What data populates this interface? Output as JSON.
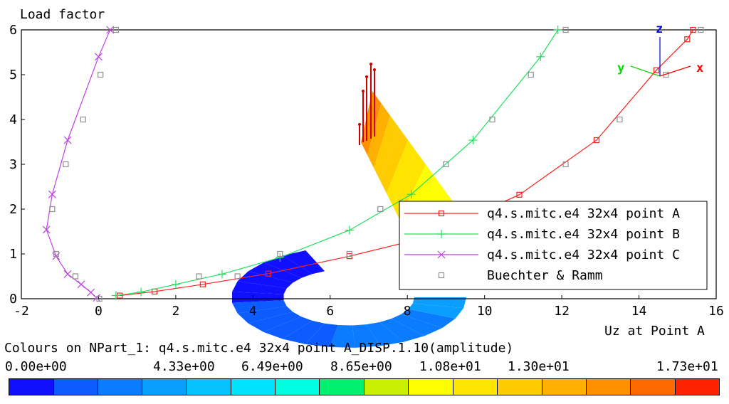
{
  "chart_data": {
    "type": "line",
    "ylabel": "Load factor",
    "xlabel": "Uz at Point A",
    "xlim": [
      -2,
      16
    ],
    "ylim": [
      0,
      6
    ],
    "x_ticks": [
      "-2",
      "0",
      "2",
      "4",
      "6",
      "8",
      "10",
      "12",
      "14",
      "16"
    ],
    "y_ticks": [
      "0",
      "1",
      "2",
      "3",
      "4",
      "5",
      "6"
    ],
    "series": [
      {
        "name": "q4.s.mitc.e4 32x4 point A",
        "color": "#ff2020",
        "marker": "square",
        "points": [
          [
            0.55,
            0.07
          ],
          [
            1.45,
            0.16
          ],
          [
            2.7,
            0.32
          ],
          [
            4.4,
            0.56
          ],
          [
            6.5,
            0.95
          ],
          [
            8.4,
            1.35
          ],
          [
            10.9,
            2.32
          ],
          [
            12.9,
            3.54
          ],
          [
            14.45,
            5.1
          ],
          [
            15.25,
            5.79
          ],
          [
            15.4,
            6.0
          ]
        ]
      },
      {
        "name": "q4.s.mitc.e4 32x4 point B",
        "color": "#20e060",
        "marker": "plus",
        "points": [
          [
            0.45,
            0.07
          ],
          [
            1.1,
            0.15
          ],
          [
            2.0,
            0.32
          ],
          [
            3.2,
            0.55
          ],
          [
            4.7,
            0.92
          ],
          [
            6.5,
            1.53
          ],
          [
            8.1,
            2.33
          ],
          [
            9.7,
            3.54
          ],
          [
            11.45,
            5.4
          ],
          [
            11.9,
            6.0
          ]
        ]
      },
      {
        "name": "q4.s.mitc.e4 32x4 point C",
        "color": "#c040e0",
        "marker": "x",
        "points": [
          [
            -0.05,
            0.02
          ],
          [
            -0.2,
            0.14
          ],
          [
            -0.45,
            0.32
          ],
          [
            -0.8,
            0.55
          ],
          [
            -1.1,
            0.95
          ],
          [
            -1.35,
            1.54
          ],
          [
            -1.2,
            2.33
          ],
          [
            -0.8,
            3.54
          ],
          [
            0.0,
            5.4
          ],
          [
            0.3,
            6.0
          ]
        ]
      },
      {
        "name": "Buechter & Ramm",
        "color": "#909090",
        "marker": "open-square",
        "points": [
          [
            0.02,
            0.0
          ],
          [
            -0.6,
            0.5
          ],
          [
            -1.1,
            1.0
          ],
          [
            -1.2,
            2.0
          ],
          [
            -0.85,
            3.0
          ],
          [
            -0.4,
            4.0
          ],
          [
            0.05,
            5.0
          ],
          [
            0.45,
            6.0
          ],
          [
            2.6,
            0.5
          ],
          [
            3.6,
            0.5
          ],
          [
            4.7,
            1.0
          ],
          [
            6.5,
            1.0
          ],
          [
            7.3,
            2.0
          ],
          [
            9.0,
            3.0
          ],
          [
            10.2,
            4.0
          ],
          [
            11.2,
            5.0
          ],
          [
            12.1,
            6.0
          ],
          [
            12.1,
            3.0
          ],
          [
            13.5,
            4.0
          ],
          [
            14.7,
            5.0
          ],
          [
            15.6,
            6.0
          ]
        ]
      }
    ],
    "legend_position": "lower-right",
    "grid": false
  },
  "triad": {
    "x": "x",
    "y": "y",
    "z": "z",
    "x_color": "#ff0000",
    "y_color": "#00dd00",
    "z_color": "#0000dd"
  },
  "colourbar": {
    "title": "Colours on NPart_1: q4.s.mitc.e4 32x4 point A_DISP.1.10(amplitude)",
    "labels": [
      "0.00e+00",
      "4.33e+00",
      "6.49e+00",
      "8.65e+00",
      "1.08e+01",
      "1.30e+01",
      "1.73e+01"
    ],
    "colors": [
      "#1010ff",
      "#0d5cff",
      "#0b7cff",
      "#0a9eff",
      "#06c2ff",
      "#00e4ff",
      "#00ffe0",
      "#00f070",
      "#c8f000",
      "#ffff00",
      "#ffe400",
      "#ffcc00",
      "#ffb000",
      "#ff9000",
      "#ff6a00",
      "#ff2400"
    ]
  }
}
